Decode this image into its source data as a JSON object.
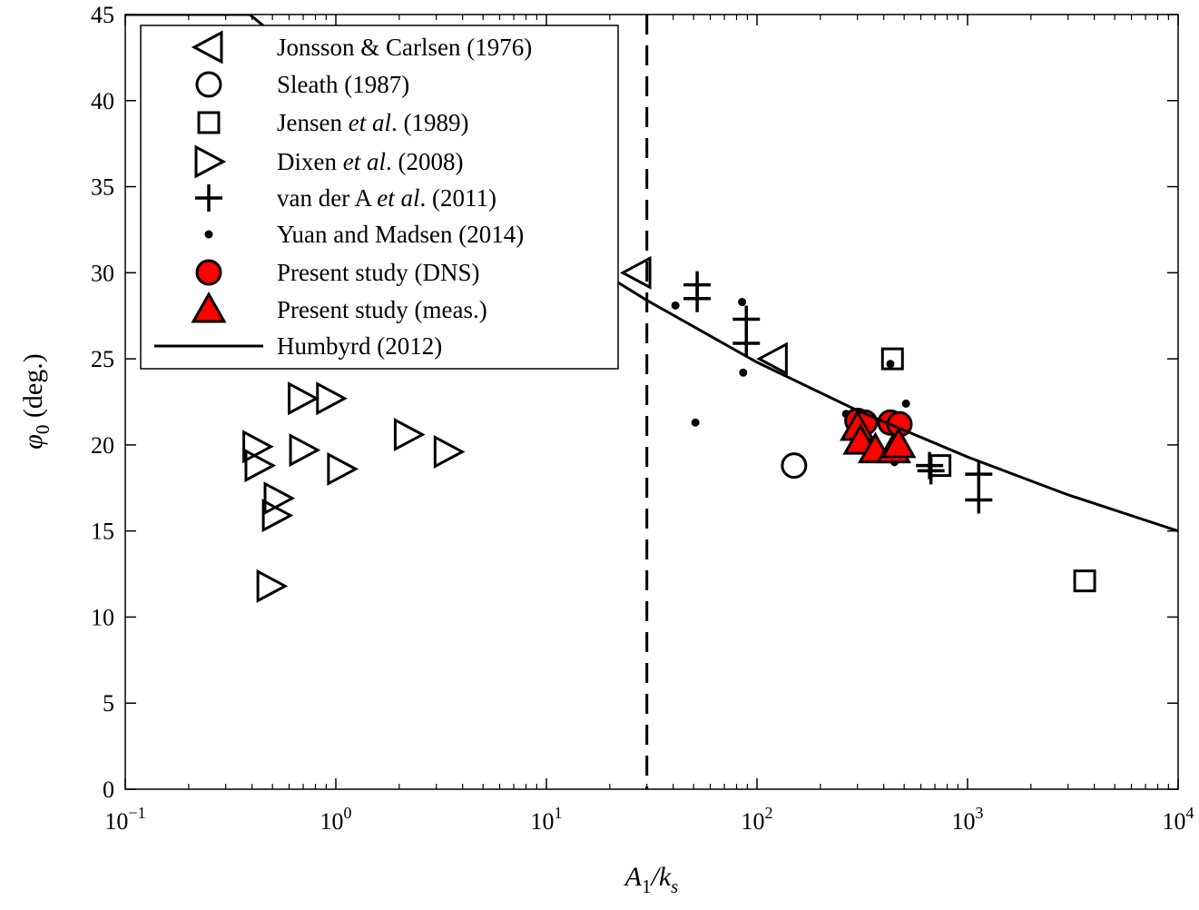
{
  "chart_data": {
    "type": "scatter",
    "x_scale": "log",
    "xlim": [
      0.1,
      10000
    ],
    "ylim": [
      0,
      45
    ],
    "grid": false,
    "legend_placement": "top-left",
    "xlabel": {
      "main": "A",
      "sub1": "1",
      "slash": "/k",
      "sub2": "s"
    },
    "ylabel": {
      "main": "φ",
      "sub": "0",
      "rest": " (deg.)"
    },
    "x_ticks": [
      {
        "base": "10",
        "exp": "−1",
        "value": 0.1
      },
      {
        "base": "10",
        "exp": "0",
        "value": 1
      },
      {
        "base": "10",
        "exp": "1",
        "value": 10
      },
      {
        "base": "10",
        "exp": "2",
        "value": 100
      },
      {
        "base": "10",
        "exp": "3",
        "value": 1000
      },
      {
        "base": "10",
        "exp": "4",
        "value": 10000
      }
    ],
    "y_ticks": [
      "0",
      "5",
      "10",
      "15",
      "20",
      "25",
      "30",
      "35",
      "40",
      "45"
    ],
    "reference_line": {
      "x": 30,
      "style": "dashed"
    },
    "series": [
      {
        "name": "Jonsson & Carlsen (1976)",
        "label": {
          "pre": "Jonsson & Carlsen (1976)",
          "ital": "",
          "post": ""
        },
        "marker": "triangle-left",
        "fill": "none",
        "points": [
          [
            27,
            30.0
          ],
          [
            120,
            25.0
          ]
        ]
      },
      {
        "name": "Sleath (1987)",
        "label": {
          "pre": "Sleath (1987)",
          "ital": "",
          "post": ""
        },
        "marker": "circle",
        "fill": "none",
        "points": [
          [
            150,
            18.8
          ]
        ]
      },
      {
        "name": "Jensen et al. (1989)",
        "label": {
          "pre": "Jensen ",
          "ital": "et al",
          "post": ". (1989)"
        },
        "marker": "square",
        "fill": "none",
        "points": [
          [
            440,
            25.0
          ],
          [
            740,
            18.8
          ],
          [
            3600,
            12.1
          ]
        ]
      },
      {
        "name": "Dixen et al. (2008)",
        "label": {
          "pre": "Dixen ",
          "ital": "et al",
          "post": ". (2008)"
        },
        "marker": "triangle-right",
        "fill": "none",
        "points": [
          [
            0.42,
            19.9
          ],
          [
            0.43,
            18.8
          ],
          [
            0.69,
            22.7
          ],
          [
            0.94,
            22.7
          ],
          [
            0.7,
            19.7
          ],
          [
            1.06,
            18.6
          ],
          [
            0.53,
            16.9
          ],
          [
            0.52,
            15.9
          ],
          [
            0.49,
            11.8
          ],
          [
            2.2,
            20.6
          ],
          [
            3.4,
            19.6
          ]
        ]
      },
      {
        "name": "van der A et al. (2011)",
        "label": {
          "pre": "van der A ",
          "ital": "et al",
          "post": ". (2011)"
        },
        "marker": "plus",
        "fill": "none",
        "points": [
          [
            52,
            29.3
          ],
          [
            52,
            28.5
          ],
          [
            89,
            27.3
          ],
          [
            89,
            25.9
          ],
          [
            660,
            18.8
          ],
          [
            670,
            18.5
          ],
          [
            1130,
            18.3
          ],
          [
            1130,
            16.8
          ]
        ]
      },
      {
        "name": "Yuan and Madsen (2014)",
        "label": {
          "pre": "Yuan and Madsen (2014)",
          "ital": "",
          "post": ""
        },
        "marker": "dot",
        "fill": "#000000",
        "points": [
          [
            41,
            28.1
          ],
          [
            85,
            28.3
          ],
          [
            86,
            24.2
          ],
          [
            51,
            21.3
          ],
          [
            430,
            24.7
          ],
          [
            510,
            22.4
          ],
          [
            450,
            19.0
          ],
          [
            265,
            21.8
          ]
        ]
      },
      {
        "name": "Present study (DNS)",
        "label": {
          "pre": "Present study (DNS)",
          "ital": "",
          "post": ""
        },
        "marker": "circle",
        "fill": "#ff0000",
        "points": [
          [
            300,
            21.4
          ],
          [
            325,
            21.3
          ],
          [
            430,
            21.3
          ],
          [
            475,
            21.2
          ]
        ]
      },
      {
        "name": "Present study (meas.)",
        "label": {
          "pre": "Present study (meas.)",
          "ital": "",
          "post": ""
        },
        "marker": "triangle-up",
        "fill": "#ff0000",
        "points": [
          [
            300,
            21.0
          ],
          [
            310,
            20.2
          ],
          [
            365,
            19.7
          ],
          [
            445,
            19.7
          ],
          [
            470,
            20.0
          ]
        ]
      },
      {
        "name": "Humbyrd (2012)",
        "label": {
          "pre": "Humbyrd (2012)",
          "ital": "",
          "post": ""
        },
        "marker": "line",
        "fill": "none",
        "points": [
          [
            0.1,
            45
          ],
          [
            0.39,
            45
          ],
          [
            1,
            40.9
          ],
          [
            3,
            36.6
          ],
          [
            10,
            32.0
          ],
          [
            30,
            28.4
          ],
          [
            100,
            24.8
          ],
          [
            300,
            22.0
          ],
          [
            1000,
            19.3
          ],
          [
            3000,
            17.1
          ],
          [
            10000,
            15.0
          ]
        ]
      }
    ]
  }
}
